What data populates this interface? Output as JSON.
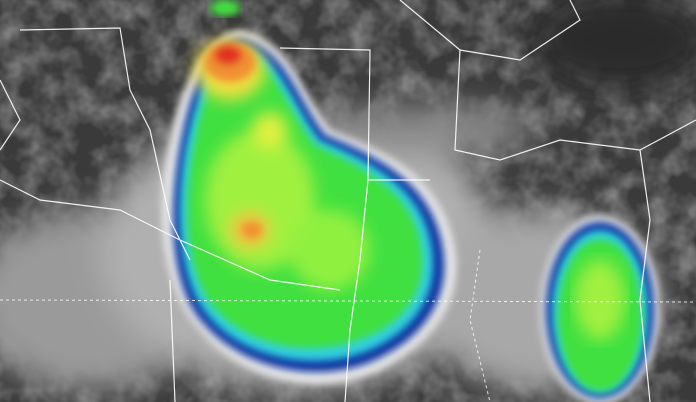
{
  "image": {
    "kind": "infrared satellite image of storm clouds",
    "colors": {
      "ground": "#3a3a3a",
      "cloud_gray": "#b8b8b8",
      "cloud_white": "#e8e8e8",
      "cold_blue": "#1030a0",
      "cyan": "#30d0e0",
      "green": "#40e040",
      "yellow_green": "#c0f040",
      "yellow": "#f0e040",
      "orange": "#f09030",
      "red": "#e03020",
      "borders": "#ffffff"
    }
  }
}
